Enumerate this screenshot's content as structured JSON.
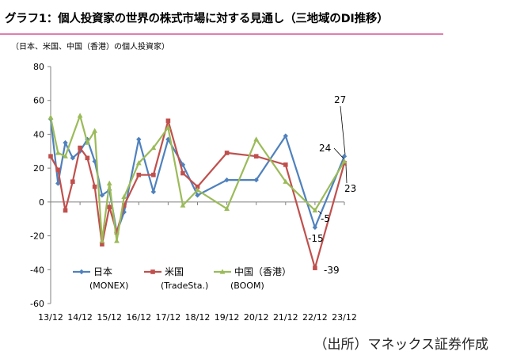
{
  "header": {
    "title": "グラフ1：個人投資家の世界の株式市場に対する見通し（三地域のDI推移）",
    "subtitle": "（日本、米国、中国（香港）の個人投資家）"
  },
  "footer": {
    "source": "（出所）マネックス証券作成"
  },
  "colors": {
    "japan": "#4f81bd",
    "us": "#c0504d",
    "china": "#9bbb59",
    "grid": "#7f7f7f",
    "accent_rule": "#e07fb0"
  },
  "chart_data": {
    "type": "line",
    "title": "",
    "xlabel": "",
    "ylabel": "",
    "ylim": [
      -60,
      80
    ],
    "yticks": [
      80,
      60,
      40,
      20,
      0,
      -20,
      -40,
      -60
    ],
    "x_range": [
      2013.917,
      2023.917
    ],
    "x_ticks": [
      {
        "x": 2013.917,
        "label": "13/12"
      },
      {
        "x": 2014.917,
        "label": "14/12"
      },
      {
        "x": 2015.917,
        "label": "15/12"
      },
      {
        "x": 2016.917,
        "label": "16/12"
      },
      {
        "x": 2017.917,
        "label": "17/12"
      },
      {
        "x": 2018.917,
        "label": "18/12"
      },
      {
        "x": 2019.917,
        "label": "19/12"
      },
      {
        "x": 2020.917,
        "label": "20/12"
      },
      {
        "x": 2021.917,
        "label": "21/12"
      },
      {
        "x": 2022.917,
        "label": "22/12"
      },
      {
        "x": 2023.917,
        "label": "23/12"
      }
    ],
    "legend": [
      {
        "series": "japan",
        "name": "日本",
        "sub": "(MONEX)"
      },
      {
        "series": "us",
        "name": "米国",
        "sub": "(TradeSta.)"
      },
      {
        "series": "china",
        "name": "中国（香港）",
        "sub": "(BOOM)"
      }
    ],
    "series": [
      {
        "key": "japan",
        "name": "日本",
        "points": [
          [
            2013.917,
            49
          ],
          [
            2014.167,
            11
          ],
          [
            2014.417,
            35
          ],
          [
            2014.667,
            26
          ],
          [
            2014.917,
            30
          ],
          [
            2015.167,
            37
          ],
          [
            2015.417,
            24
          ],
          [
            2015.667,
            4
          ],
          [
            2015.917,
            7
          ],
          [
            2016.167,
            -18
          ],
          [
            2016.417,
            -6
          ],
          [
            2016.917,
            37
          ],
          [
            2017.417,
            6
          ],
          [
            2017.917,
            37
          ],
          [
            2018.417,
            22
          ],
          [
            2018.917,
            4
          ],
          [
            2019.917,
            13
          ],
          [
            2020.917,
            13
          ],
          [
            2021.917,
            39
          ],
          [
            2022.917,
            -15
          ],
          [
            2023.917,
            27
          ]
        ]
      },
      {
        "key": "us",
        "name": "米国",
        "points": [
          [
            2013.917,
            27
          ],
          [
            2014.167,
            19
          ],
          [
            2014.417,
            -5
          ],
          [
            2014.667,
            12
          ],
          [
            2014.917,
            32
          ],
          [
            2015.167,
            26
          ],
          [
            2015.417,
            9
          ],
          [
            2015.667,
            -25
          ],
          [
            2015.917,
            -3
          ],
          [
            2016.167,
            -18
          ],
          [
            2016.417,
            -2
          ],
          [
            2016.917,
            16
          ],
          [
            2017.417,
            16
          ],
          [
            2017.917,
            48
          ],
          [
            2018.417,
            17
          ],
          [
            2018.917,
            9
          ],
          [
            2019.917,
            29
          ],
          [
            2020.917,
            27
          ],
          [
            2021.917,
            22
          ],
          [
            2022.917,
            -39
          ],
          [
            2023.917,
            23
          ]
        ]
      },
      {
        "key": "china",
        "name": "中国（香港）",
        "points": [
          [
            2013.917,
            50
          ],
          [
            2014.167,
            29
          ],
          [
            2014.417,
            27
          ],
          [
            2014.917,
            51
          ],
          [
            2015.167,
            35
          ],
          [
            2015.417,
            42
          ],
          [
            2015.667,
            -23
          ],
          [
            2015.917,
            11
          ],
          [
            2016.167,
            -23
          ],
          [
            2016.417,
            3
          ],
          [
            2016.917,
            23
          ],
          [
            2017.417,
            32
          ],
          [
            2017.917,
            44
          ],
          [
            2018.417,
            -2
          ],
          [
            2018.917,
            7
          ],
          [
            2019.917,
            -4
          ],
          [
            2020.917,
            37
          ],
          [
            2021.917,
            12
          ],
          [
            2022.917,
            -5
          ],
          [
            2023.917,
            24
          ]
        ]
      }
    ],
    "annotations": [
      {
        "text": "27"
      },
      {
        "text": "24"
      },
      {
        "text": "23"
      },
      {
        "text": "-5"
      },
      {
        "text": "-15"
      },
      {
        "text": "-39"
      }
    ]
  }
}
